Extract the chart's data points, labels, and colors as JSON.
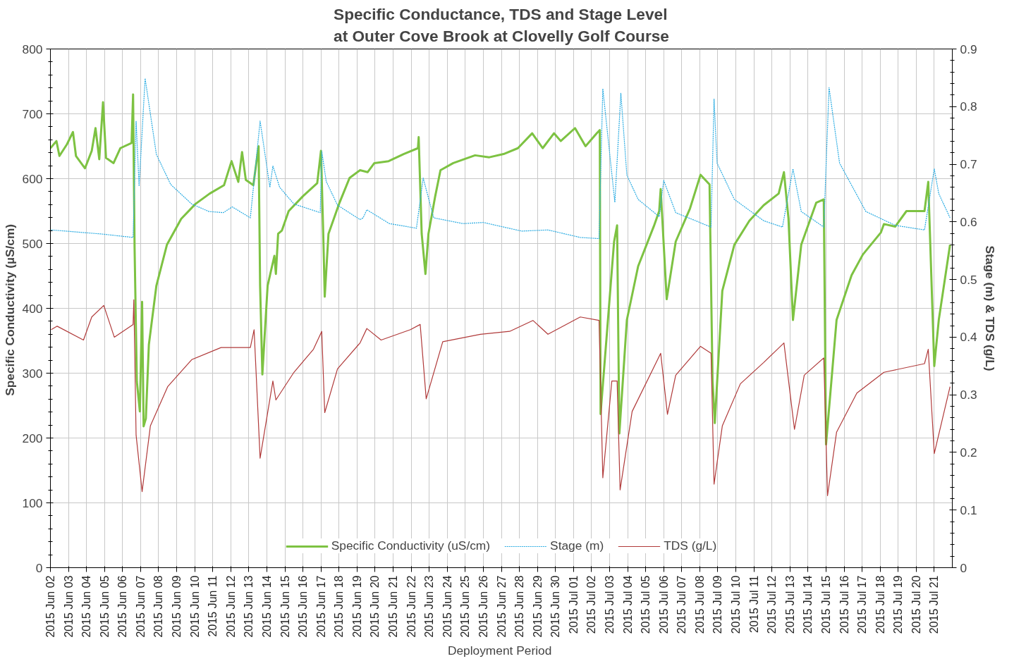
{
  "chart_data": {
    "type": "line",
    "title": "Specific Conductance, TDS and Stage Level\nat Outer Cove Brook at Clovelly Golf Course",
    "xlabel": "Deployment  Period",
    "ylabel": "Specific Conductivity  (µS/cm)",
    "y2label": "Stage (m) & TDS (g/L)",
    "xlim": [
      "2015-06-02",
      "2015-07-22"
    ],
    "xticks": [
      {
        "value": "2015-06-02",
        "label": "2015 Jun 02"
      },
      {
        "value": "2015-06-03",
        "label": "2015 Jun 03"
      },
      {
        "value": "2015-06-04",
        "label": "2015 Jun 04"
      },
      {
        "value": "2015-06-05",
        "label": "2015 Jun 05"
      },
      {
        "value": "2015-06-06",
        "label": "2015 Jun 06"
      },
      {
        "value": "2015-06-07",
        "label": "2015 Jun 07"
      },
      {
        "value": "2015-06-08",
        "label": "2015 Jun 08"
      },
      {
        "value": "2015-06-09",
        "label": "2015 Jun 09"
      },
      {
        "value": "2015-06-10",
        "label": "2015 Jun 10"
      },
      {
        "value": "2015-06-11",
        "label": "2015 Jun 11"
      },
      {
        "value": "2015-06-12",
        "label": "2015 Jun 12"
      },
      {
        "value": "2015-06-13",
        "label": "2015 Jun 13"
      },
      {
        "value": "2015-06-14",
        "label": "2015 Jun 14"
      },
      {
        "value": "2015-06-15",
        "label": "2015 Jun 15"
      },
      {
        "value": "2015-06-16",
        "label": "2015 Jun 16"
      },
      {
        "value": "2015-06-17",
        "label": "2015 Jun 17"
      },
      {
        "value": "2015-06-18",
        "label": "2015 Jun 18"
      },
      {
        "value": "2015-06-19",
        "label": "2015 Jun 19"
      },
      {
        "value": "2015-06-20",
        "label": "2015 Jun 20"
      },
      {
        "value": "2015-06-21",
        "label": "2015 Jun 21"
      },
      {
        "value": "2015-06-22",
        "label": "2015 Jun 22"
      },
      {
        "value": "2015-06-23",
        "label": "2015 Jun 23"
      },
      {
        "value": "2015-06-24",
        "label": "2015 Jun 24"
      },
      {
        "value": "2015-06-25",
        "label": "2015 Jun 25"
      },
      {
        "value": "2015-06-26",
        "label": "2015 Jun 26"
      },
      {
        "value": "2015-06-27",
        "label": "2015 Jun 27"
      },
      {
        "value": "2015-06-28",
        "label": "2015 Jun 28"
      },
      {
        "value": "2015-06-29",
        "label": "2015 Jun 29"
      },
      {
        "value": "2015-06-30",
        "label": "2015 Jun 30"
      },
      {
        "value": "2015-07-01",
        "label": "2015 Jul 01"
      },
      {
        "value": "2015-07-02",
        "label": "2015 Jul 02"
      },
      {
        "value": "2015-07-03",
        "label": "2015 Jul 03"
      },
      {
        "value": "2015-07-04",
        "label": "2015 Jul 04"
      },
      {
        "value": "2015-07-05",
        "label": "2015 Jul 05"
      },
      {
        "value": "2015-07-06",
        "label": "2015 Jul 06"
      },
      {
        "value": "2015-07-07",
        "label": "2015 Jul 07"
      },
      {
        "value": "2015-07-08",
        "label": "2015 Jul 08"
      },
      {
        "value": "2015-07-09",
        "label": "2015 Jul 09"
      },
      {
        "value": "2015-07-10",
        "label": "2015 Jul 10"
      },
      {
        "value": "2015-07-11",
        "label": "2015 Jul 11"
      },
      {
        "value": "2015-07-12",
        "label": "2015 Jul 12"
      },
      {
        "value": "2015-07-13",
        "label": "2015 Jul 13"
      },
      {
        "value": "2015-07-14",
        "label": "2015 Jul 14"
      },
      {
        "value": "2015-07-15",
        "label": "2015 Jul 15"
      },
      {
        "value": "2015-07-16",
        "label": "2015 Jul 16"
      },
      {
        "value": "2015-07-17",
        "label": "2015 Jul 17"
      },
      {
        "value": "2015-07-18",
        "label": "2015 Jul 18"
      },
      {
        "value": "2015-07-19",
        "label": "2015 Jul 19"
      },
      {
        "value": "2015-07-20",
        "label": "2015 Jul 20"
      },
      {
        "value": "2015-07-21",
        "label": "2015 Jul 21"
      }
    ],
    "ylim": [
      0,
      800
    ],
    "yticks": [
      0,
      100,
      200,
      300,
      400,
      500,
      600,
      700,
      800
    ],
    "y2lim": [
      0,
      0.9
    ],
    "y2ticks": [
      0,
      0.1,
      0.2,
      0.3,
      0.4,
      0.5,
      0.6,
      0.7,
      0.8,
      0.9
    ],
    "grid": true,
    "legend": "bottom",
    "series": [
      {
        "name": "Specific Conductivity (uS/cm)",
        "color": "#7dc242",
        "line_style": "solid",
        "x": [
          "2015-06-02T00:00",
          "2015-06-02T08:00",
          "2015-06-02T12:00",
          "2015-06-02T22:00",
          "2015-06-03T06:00",
          "2015-06-03T10:00",
          "2015-06-03T22:00",
          "2015-06-04T07:00",
          "2015-06-04T12:00",
          "2015-06-04T17:00",
          "2015-06-04T22:00",
          "2015-06-05T02:00",
          "2015-06-05T12:00",
          "2015-06-05T21:00",
          "2015-06-06T12:00",
          "2015-06-06T14:00",
          "2015-06-06T16:00",
          "2015-06-06T19:00",
          "2015-06-06T23:00",
          "2015-06-07T02:00",
          "2015-06-07T04:00",
          "2015-06-07T07:00",
          "2015-06-07T11:00",
          "2015-06-07T21:00",
          "2015-06-08T11:00",
          "2015-06-09T06:00",
          "2015-06-10T01:00",
          "2015-06-10T20:00",
          "2015-06-11T15:00",
          "2015-06-12T01:00",
          "2015-06-12T10:00",
          "2015-06-12T15:00",
          "2015-06-12T20:00",
          "2015-06-13T06:00",
          "2015-06-13T13:00",
          "2015-06-13T15:00",
          "2015-06-13T18:00",
          "2015-06-14T01:00",
          "2015-06-14T10:00",
          "2015-06-14T12:00",
          "2015-06-14T15:00",
          "2015-06-14T20:00",
          "2015-06-15T05:00",
          "2015-06-16T00:00",
          "2015-06-16T19:00",
          "2015-06-17T00:00",
          "2015-06-17T03:00",
          "2015-06-17T05:00",
          "2015-06-17T10:00",
          "2015-06-18T00:00",
          "2015-06-18T14:00",
          "2015-06-19T04:00",
          "2015-06-19T14:00",
          "2015-06-19T23:00",
          "2015-06-20T18:00",
          "2015-06-21T14:00",
          "2015-06-22T09:00",
          "2015-06-22T10:00",
          "2015-06-22T14:00",
          "2015-06-22T19:00",
          "2015-06-22T23:00",
          "2015-06-23T08:00",
          "2015-06-23T15:00",
          "2015-06-24T08:00",
          "2015-06-25T13:00",
          "2015-06-26T08:00",
          "2015-06-27T03:00",
          "2015-06-27T22:00",
          "2015-06-28T17:00",
          "2015-06-29T07:00",
          "2015-06-29T22:00",
          "2015-06-30T07:00",
          "2015-07-01T02:00",
          "2015-07-01T16:00",
          "2015-07-02T07:00",
          "2015-07-02T11:00",
          "2015-07-02T12:00",
          "2015-07-03T06:00",
          "2015-07-03T10:00",
          "2015-07-03T13:00",
          "2015-07-03T23:00",
          "2015-07-04T14:00",
          "2015-07-05T11:00",
          "2015-07-05T18:00",
          "2015-07-05T20:00",
          "2015-07-06T04:00",
          "2015-07-06T16:00",
          "2015-07-07T11:00",
          "2015-07-08T01:00",
          "2015-07-08T13:00",
          "2015-07-08T17:00",
          "2015-07-08T20:00",
          "2015-07-09T06:00",
          "2015-07-09T22:00",
          "2015-07-10T18:00",
          "2015-07-11T13:00",
          "2015-07-12T09:00",
          "2015-07-12T16:00",
          "2015-07-12T22:00",
          "2015-07-13T04:00",
          "2015-07-13T15:00",
          "2015-07-14T11:00",
          "2015-07-14T21:00",
          "2015-07-15T00:00",
          "2015-07-15T14:00",
          "2015-07-16T10:00",
          "2015-07-17T01:00",
          "2015-07-18T01:00",
          "2015-07-18T05:00",
          "2015-07-18T20:00",
          "2015-07-19T11:00",
          "2015-07-20T11:00",
          "2015-07-20T16:00",
          "2015-07-21T00:00",
          "2015-07-21T06:00",
          "2015-07-21T21:00"
        ],
        "values": [
          647,
          658,
          635,
          653,
          672,
          635,
          616,
          643,
          678,
          630,
          718,
          632,
          624,
          647,
          655,
          730,
          493,
          287,
          241,
          410,
          218,
          230,
          344,
          435,
          498,
          538,
          561,
          577,
          590,
          627,
          595,
          641,
          598,
          590,
          650,
          435,
          298,
          435,
          481,
          453,
          515,
          520,
          550,
          573,
          593,
          643,
          515,
          418,
          515,
          561,
          601,
          613,
          610,
          624,
          627,
          638,
          647,
          664,
          515,
          453,
          515,
          573,
          613,
          624,
          636,
          633,
          638,
          647,
          670,
          647,
          670,
          658,
          678,
          650,
          670,
          675,
          237,
          503,
          528,
          207,
          382,
          465,
          527,
          550,
          584,
          414,
          503,
          554,
          606,
          591,
          288,
          223,
          427,
          498,
          535,
          559,
          577,
          610,
          539,
          382,
          498,
          563,
          568,
          190,
          382,
          451,
          483,
          517,
          530,
          526,
          550,
          550,
          595,
          311,
          382,
          498
        ]
      },
      {
        "name": "Stage (m)",
        "color": "#29abe2",
        "line_style": "dashed",
        "axis": "y2",
        "x": [
          "2015-06-02T01:00",
          "2015-06-04T20:00",
          "2015-06-06T14:00",
          "2015-06-06T18:00",
          "2015-06-06T22:00",
          "2015-06-07T06:00",
          "2015-06-07T21:00",
          "2015-06-08T16:00",
          "2015-06-09T20:00",
          "2015-06-10T19:00",
          "2015-06-11T14:00",
          "2015-06-12T02:00",
          "2015-06-13T02:00",
          "2015-06-13T15:00",
          "2015-06-14T04:00",
          "2015-06-14T08:00",
          "2015-06-14T17:00",
          "2015-06-15T12:00",
          "2015-06-16T23:00",
          "2015-06-17T01:00",
          "2015-06-17T07:00",
          "2015-06-17T22:00",
          "2015-06-19T04:00",
          "2015-06-19T08:00",
          "2015-06-19T13:00",
          "2015-06-20T19:00",
          "2015-06-22T07:00",
          "2015-06-22T16:00",
          "2015-06-23T06:00",
          "2015-06-24T21:00",
          "2015-06-26T00:00",
          "2015-06-28T03:00",
          "2015-06-29T14:00",
          "2015-07-01T09:00",
          "2015-07-02T10:00",
          "2015-07-02T15:00",
          "2015-07-03T07:00",
          "2015-07-03T15:00",
          "2015-07-03T23:00",
          "2015-07-04T14:00",
          "2015-07-05T18:00",
          "2015-07-06T00:00",
          "2015-07-06T16:00",
          "2015-07-08T15:00",
          "2015-07-08T19:00",
          "2015-07-08T23:00",
          "2015-07-09T22:00",
          "2015-07-11T13:00",
          "2015-07-12T14:00",
          "2015-07-13T04:00",
          "2015-07-13T15:00",
          "2015-07-14T21:00",
          "2015-07-15T04:00",
          "2015-07-15T18:00",
          "2015-07-17T05:00",
          "2015-07-18T20:00",
          "2015-07-20T11:00",
          "2015-07-21T00:00",
          "2015-07-21T06:00",
          "2015-07-21T21:00"
        ],
        "values": [
          0.586,
          0.579,
          0.573,
          0.775,
          0.662,
          0.849,
          0.717,
          0.665,
          0.631,
          0.618,
          0.616,
          0.626,
          0.607,
          0.775,
          0.66,
          0.697,
          0.66,
          0.631,
          0.616,
          0.723,
          0.67,
          0.629,
          0.604,
          0.607,
          0.621,
          0.597,
          0.589,
          0.676,
          0.607,
          0.597,
          0.599,
          0.584,
          0.586,
          0.573,
          0.571,
          0.831,
          0.634,
          0.823,
          0.681,
          0.639,
          0.609,
          0.672,
          0.616,
          0.591,
          0.813,
          0.702,
          0.639,
          0.602,
          0.591,
          0.692,
          0.618,
          0.591,
          0.833,
          0.702,
          0.618,
          0.594,
          0.586,
          0.692,
          0.649,
          0.607
        ]
      },
      {
        "name": "TDS (g/L)",
        "color": "#b03a3a",
        "line_style": "solid",
        "axis": "y2",
        "x": [
          "2015-06-02T01:00",
          "2015-06-02T09:00",
          "2015-06-03T20:00",
          "2015-06-04T07:00",
          "2015-06-04T23:00",
          "2015-06-05T13:00",
          "2015-06-06T14:00",
          "2015-06-06T15:00",
          "2015-06-06T18:00",
          "2015-06-07T02:00",
          "2015-06-07T13:00",
          "2015-06-08T12:00",
          "2015-06-09T20:00",
          "2015-06-11T11:00",
          "2015-06-13T02:00",
          "2015-06-13T07:00",
          "2015-06-13T15:00",
          "2015-06-14T08:00",
          "2015-06-14T12:00",
          "2015-06-15T12:00",
          "2015-06-16T14:00",
          "2015-06-17T01:00",
          "2015-06-17T05:00",
          "2015-06-17T22:00",
          "2015-06-19T04:00",
          "2015-06-19T13:00",
          "2015-06-20T08:00",
          "2015-06-21T23:00",
          "2015-06-22T12:00",
          "2015-06-22T20:00",
          "2015-06-23T18:00",
          "2015-06-25T20:00",
          "2015-06-27T11:00",
          "2015-06-28T18:00",
          "2015-06-29T14:00",
          "2015-07-01T09:00",
          "2015-07-02T10:00",
          "2015-07-02T15:00",
          "2015-07-03T03:00",
          "2015-07-03T10:00",
          "2015-07-03T14:00",
          "2015-07-04T06:00",
          "2015-07-05T20:00",
          "2015-07-06T05:00",
          "2015-07-06T16:00",
          "2015-07-08T01:00",
          "2015-07-08T15:00",
          "2015-07-08T19:00",
          "2015-07-09T06:00",
          "2015-07-10T06:00",
          "2015-07-11T13:00",
          "2015-07-12T16:00",
          "2015-07-13T06:00",
          "2015-07-13T19:00",
          "2015-07-14T21:00",
          "2015-07-15T02:00",
          "2015-07-15T14:00",
          "2015-07-16T17:00",
          "2015-07-18T05:00",
          "2015-07-20T11:00",
          "2015-07-20T16:00",
          "2015-07-21T00:00",
          "2015-07-21T21:00"
        ],
        "values": [
          0.413,
          0.419,
          0.395,
          0.435,
          0.455,
          0.4,
          0.422,
          0.465,
          0.23,
          0.132,
          0.246,
          0.314,
          0.361,
          0.382,
          0.382,
          0.413,
          0.19,
          0.324,
          0.291,
          0.339,
          0.379,
          0.41,
          0.269,
          0.345,
          0.39,
          0.415,
          0.395,
          0.413,
          0.422,
          0.293,
          0.392,
          0.405,
          0.41,
          0.429,
          0.405,
          0.435,
          0.429,
          0.156,
          0.324,
          0.324,
          0.135,
          0.271,
          0.372,
          0.266,
          0.334,
          0.384,
          0.372,
          0.145,
          0.246,
          0.319,
          0.356,
          0.39,
          0.24,
          0.334,
          0.364,
          0.125,
          0.235,
          0.303,
          0.339,
          0.354,
          0.379,
          0.198,
          0.314
        ]
      }
    ]
  }
}
